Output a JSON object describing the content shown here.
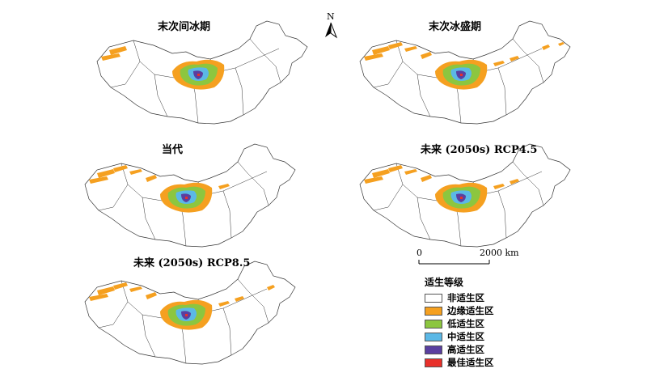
{
  "panels": [
    {
      "id": "lig",
      "title": "末次间冰期"
    },
    {
      "id": "lgm",
      "title": "末次冰盛期"
    },
    {
      "id": "cur",
      "title": "当代"
    },
    {
      "id": "rcp45",
      "title": "未来 (2050s) RCP4.5"
    },
    {
      "id": "rcp85",
      "title": "未来 (2050s) RCP8.5"
    }
  ],
  "north_arrow": {
    "label": "N"
  },
  "scale_bar": {
    "start_label": "0",
    "end_label": "2000 km"
  },
  "legend": {
    "title": "适生等级",
    "items": [
      {
        "label": "非适生区",
        "color": "#ffffff"
      },
      {
        "label": "边缘适生区",
        "color": "#f5a020"
      },
      {
        "label": "低适生区",
        "color": "#8cc63f"
      },
      {
        "label": "中适生区",
        "color": "#5bb8e6"
      },
      {
        "label": "高适生区",
        "color": "#5a3fa0"
      },
      {
        "label": "最佳适生区",
        "color": "#e8302a"
      }
    ]
  }
}
